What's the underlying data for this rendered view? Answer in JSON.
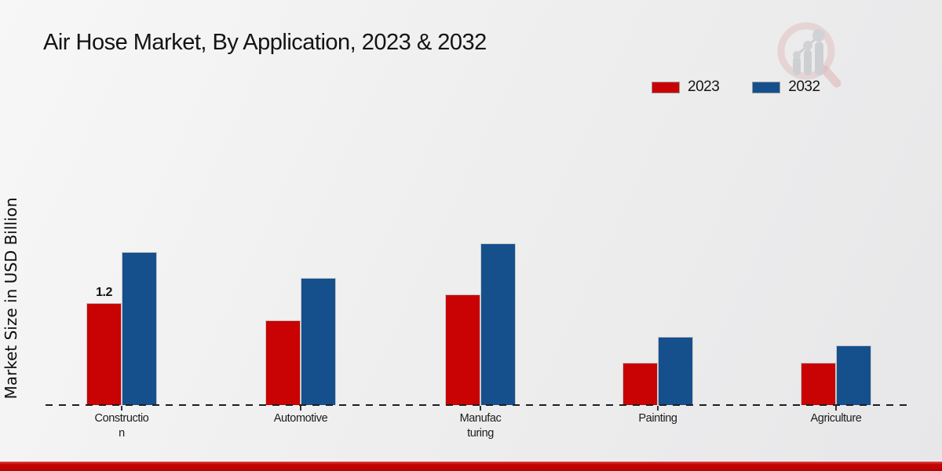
{
  "chart_data": {
    "type": "bar",
    "title": "Air Hose Market, By Application, 2023 & 2032",
    "ylabel": "Market Size in USD Billion",
    "xlabel": "",
    "categories": [
      "Construction",
      "Automotive",
      "Manufacturing",
      "Painting",
      "Agriculture"
    ],
    "category_label_lines": [
      [
        "Constructio",
        "n"
      ],
      [
        "Automotive"
      ],
      [
        "Manufac",
        "turing"
      ],
      [
        "Painting"
      ],
      [
        "Agriculture"
      ]
    ],
    "series": [
      {
        "name": "2023",
        "color": "#c90303",
        "values": [
          1.2,
          1.0,
          1.3,
          0.5,
          0.5
        ]
      },
      {
        "name": "2032",
        "color": "#15508d",
        "values": [
          1.8,
          1.5,
          1.9,
          0.8,
          0.7
        ]
      }
    ],
    "bar_labels": [
      {
        "series_index": 0,
        "category_index": 0,
        "text": "1.2"
      }
    ],
    "ylim": [
      0,
      2
    ],
    "grid": false,
    "legend_position": "top-right",
    "baseline_style": "dashed"
  },
  "branding": {
    "watermark_icon": "magnifier-bar-chart-logo",
    "accent_color": "#c40404",
    "watermark_pink": "#d9a8a8",
    "watermark_gray": "#c2c4c8"
  }
}
